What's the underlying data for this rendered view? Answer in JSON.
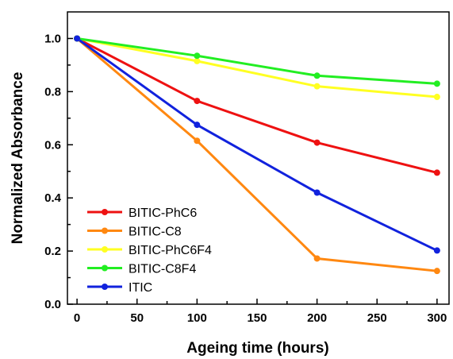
{
  "chart_data": {
    "type": "line",
    "title": "",
    "xlabel": "Ageing time (hours)",
    "ylabel": "Normalized Absorbance",
    "xlim": [
      -8,
      310
    ],
    "ylim": [
      0.0,
      1.1
    ],
    "x_ticks": [
      0,
      50,
      100,
      150,
      200,
      250,
      300
    ],
    "x_tick_labels": [
      "0",
      "50",
      "100",
      "150",
      "200",
      "250",
      "300"
    ],
    "y_ticks": [
      0.0,
      0.2,
      0.4,
      0.6,
      0.8,
      1.0
    ],
    "y_tick_labels": [
      "0.0",
      "0.2",
      "0.4",
      "0.6",
      "0.8",
      "1.0"
    ],
    "x": [
      0,
      100,
      200,
      300
    ],
    "grid": false,
    "legend_position": "bottom-left",
    "series": [
      {
        "name": "BITIC-PhC6",
        "color": "#ee1111",
        "values": [
          1.0,
          0.765,
          0.608,
          0.495
        ]
      },
      {
        "name": "BITIC-C8",
        "color": "#ff8811",
        "values": [
          1.0,
          0.615,
          0.172,
          0.125
        ]
      },
      {
        "name": "BITIC-PhC6F4",
        "color": "#ffff22",
        "values": [
          1.0,
          0.915,
          0.82,
          0.78
        ]
      },
      {
        "name": "BITIC-C8F4",
        "color": "#22ee22",
        "values": [
          1.0,
          0.935,
          0.86,
          0.83
        ]
      },
      {
        "name": "ITIC",
        "color": "#1122dd",
        "values": [
          1.0,
          0.675,
          0.42,
          0.202
        ]
      }
    ]
  }
}
